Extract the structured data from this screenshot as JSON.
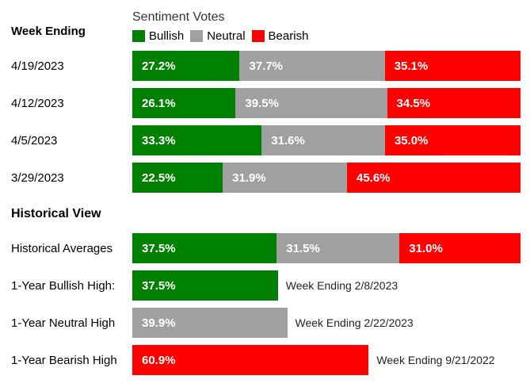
{
  "colors": {
    "bullish": "#008000",
    "neutral": "#A0A0A0",
    "bearish": "#FF0000"
  },
  "header": {
    "week_ending_label": "Week Ending",
    "chart_title": "Sentiment Votes",
    "legend": [
      {
        "name": "bullish",
        "label": "Bullish"
      },
      {
        "name": "neutral",
        "label": "Neutral"
      },
      {
        "name": "bearish",
        "label": "Bearish"
      }
    ]
  },
  "weekly_rows": [
    {
      "date": "4/19/2023",
      "segments": [
        {
          "name": "bullish",
          "value": 27.2,
          "label": "27.2%"
        },
        {
          "name": "neutral",
          "value": 37.7,
          "label": "37.7%"
        },
        {
          "name": "bearish",
          "value": 35.1,
          "label": "35.1%"
        }
      ]
    },
    {
      "date": "4/12/2023",
      "segments": [
        {
          "name": "bullish",
          "value": 26.1,
          "label": "26.1%"
        },
        {
          "name": "neutral",
          "value": 39.5,
          "label": "39.5%"
        },
        {
          "name": "bearish",
          "value": 34.5,
          "label": "34.5%"
        }
      ]
    },
    {
      "date": "4/5/2023",
      "segments": [
        {
          "name": "bullish",
          "value": 33.3,
          "label": "33.3%"
        },
        {
          "name": "neutral",
          "value": 31.6,
          "label": "31.6%"
        },
        {
          "name": "bearish",
          "value": 35.0,
          "label": "35.0%"
        }
      ]
    },
    {
      "date": "3/29/2023",
      "segments": [
        {
          "name": "bullish",
          "value": 22.5,
          "label": "22.5%"
        },
        {
          "name": "neutral",
          "value": 31.9,
          "label": "31.9%"
        },
        {
          "name": "bearish",
          "value": 45.6,
          "label": "45.6%"
        }
      ]
    }
  ],
  "historical": {
    "section_title": "Historical View",
    "rows": [
      {
        "type": "stacked",
        "label": "Historical Averages",
        "segments": [
          {
            "name": "bullish",
            "value": 37.5,
            "label": "37.5%"
          },
          {
            "name": "neutral",
            "value": 31.5,
            "label": "31.5%"
          },
          {
            "name": "bearish",
            "value": 31.0,
            "label": "31.0%"
          }
        ]
      },
      {
        "type": "single",
        "label": "1-Year Bullish High:",
        "segment": {
          "name": "bullish",
          "value": 37.5,
          "label": "37.5%"
        },
        "annotation": "Week Ending 2/8/2023"
      },
      {
        "type": "single",
        "label": "1-Year Neutral High",
        "segment": {
          "name": "neutral",
          "value": 39.9,
          "label": "39.9%"
        },
        "annotation": "Week Ending 2/22/2023"
      },
      {
        "type": "single",
        "label": "1-Year Bearish High",
        "segment": {
          "name": "bearish",
          "value": 60.9,
          "label": "60.9%"
        },
        "annotation": "Week Ending 9/21/2022"
      }
    ]
  },
  "chart_data": {
    "type": "bar",
    "orientation": "horizontal",
    "stacked": true,
    "title": "Sentiment Votes",
    "units": "percent",
    "xlim": [
      0,
      100
    ],
    "grid": false,
    "legend_position": "top",
    "legend": [
      "Bullish",
      "Neutral",
      "Bearish"
    ],
    "categories": [
      "4/19/2023",
      "4/12/2023",
      "4/5/2023",
      "3/29/2023"
    ],
    "series": [
      {
        "name": "Bullish",
        "color": "#008000",
        "values": [
          27.2,
          26.1,
          33.3,
          22.5
        ]
      },
      {
        "name": "Neutral",
        "color": "#A0A0A0",
        "values": [
          37.7,
          39.5,
          31.6,
          31.9
        ]
      },
      {
        "name": "Bearish",
        "color": "#FF0000",
        "values": [
          35.1,
          34.5,
          35.0,
          45.6
        ]
      }
    ],
    "historical_view": {
      "historical_averages": {
        "Bullish": 37.5,
        "Neutral": 31.5,
        "Bearish": 31.0
      },
      "one_year_bullish_high": {
        "value": 37.5,
        "week_ending": "2/8/2023"
      },
      "one_year_neutral_high": {
        "value": 39.9,
        "week_ending": "2/22/2023"
      },
      "one_year_bearish_high": {
        "value": 60.9,
        "week_ending": "9/21/2022"
      }
    }
  }
}
